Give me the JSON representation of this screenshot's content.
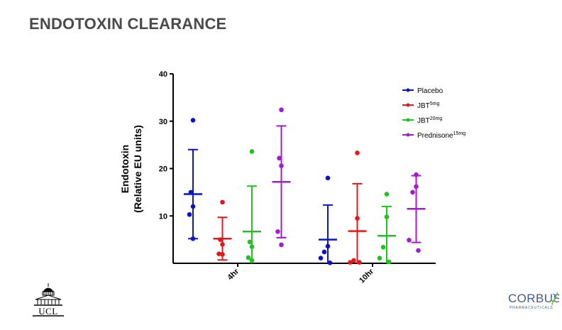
{
  "slide": {
    "title": "ENDOTOXIN CLEARANCE",
    "logo_left_text": "UCL",
    "logo_right_text": "CORBUS",
    "logo_right_subtext": "PHARMACEUTICALS"
  },
  "chart_data": {
    "type": "scatter",
    "title": "",
    "xlabel": "",
    "ylabel": [
      "Endotoxin",
      "(Relative EU units)"
    ],
    "ylim": [
      0,
      40
    ],
    "yticks": [
      10,
      20,
      30,
      40
    ],
    "ytick_labels": [
      "10",
      "20",
      "30",
      "40"
    ],
    "categories": [
      "4hr",
      "10hr"
    ],
    "grid": false,
    "legend_position": "top-right",
    "series": [
      {
        "name": "Placebo",
        "superscript": "",
        "color": "#0a14c8",
        "points": [
          [
            30.2,
            15,
            12,
            10.3,
            5.2
          ],
          [
            18,
            3.6,
            2.4,
            1.1,
            0.1
          ]
        ],
        "mean": [
          14.6,
          5.0
        ],
        "error": [
          [
            5.2,
            24.0
          ],
          [
            0,
            12.3
          ]
        ]
      },
      {
        "name": "JBT",
        "superscript": "5mg",
        "color": "#e8161b",
        "points": [
          [
            12.9,
            5,
            4,
            2,
            1.9
          ],
          [
            23.3,
            9.5,
            0.6,
            0.2,
            0.2
          ]
        ],
        "mean": [
          5.2,
          6.8
        ],
        "error": [
          [
            0.7,
            9.7
          ],
          [
            0,
            16.8
          ]
        ]
      },
      {
        "name": "JBT",
        "superscript": "20mg",
        "color": "#1fc21f",
        "points": [
          [
            23.6,
            4.5,
            3.5,
            1.2,
            0.6
          ],
          [
            14.6,
            9.8,
            3.4,
            1.1,
            0.3
          ]
        ],
        "mean": [
          6.7,
          5.8
        ],
        "error": [
          [
            0,
            16.3
          ],
          [
            0,
            12.0
          ]
        ]
      },
      {
        "name": "Prednisone",
        "superscript": "15mg",
        "color": "#a51ad2",
        "points": [
          [
            32.4,
            22.2,
            20.6,
            6.7,
            3.9
          ],
          [
            18.7,
            16.2,
            15,
            4.9,
            2.7
          ]
        ],
        "mean": [
          17.2,
          11.5
        ],
        "error": [
          [
            5.4,
            29.0
          ],
          [
            4.4,
            18.5
          ]
        ]
      }
    ]
  }
}
